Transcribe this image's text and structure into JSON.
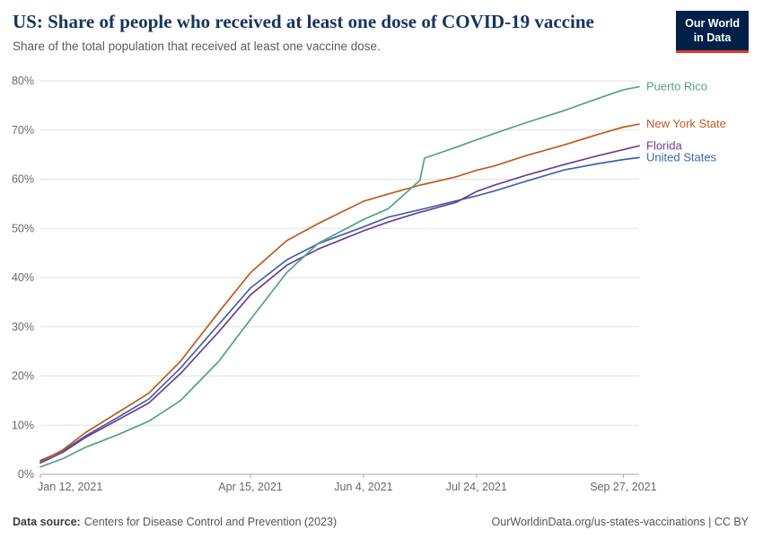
{
  "header": {
    "title": "US: Share of people who received at least one dose of COVID-19 vaccine",
    "subtitle": "Share of the total population that received at least one vaccine dose.",
    "logo": {
      "line1": "Our World",
      "line2": "in Data",
      "bg_color": "#002147",
      "accent_color": "#d93a2b"
    }
  },
  "footer": {
    "source_label": "Data source:",
    "source_value": "Centers for Disease Control and Prevention (2023)",
    "credit": "OurWorldinData.org/us-states-vaccinations | CC BY"
  },
  "chart_data": {
    "type": "line",
    "title": "US: Share of people who received at least one dose of COVID-19 vaccine",
    "subtitle": "Share of the total population that received at least one vaccine dose.",
    "xlabel": "",
    "ylabel": "",
    "grid": true,
    "legend_position": "end-of-line labels, right side",
    "y_min": 0,
    "y_max": 80,
    "y_ticks": [
      0,
      10,
      20,
      30,
      40,
      50,
      60,
      70,
      80
    ],
    "y_tick_suffix": "%",
    "x_unit": "days since Jan 12, 2021",
    "x_min": 0,
    "x_max": 265,
    "x_ticks": [
      {
        "day": 0,
        "label": "Jan 12, 2021"
      },
      {
        "day": 93,
        "label": "Apr 15, 2021"
      },
      {
        "day": 143,
        "label": "Jun 4, 2021"
      },
      {
        "day": 193,
        "label": "Jul 24, 2021"
      },
      {
        "day": 258,
        "label": "Sep 27, 2021"
      }
    ],
    "x_days": [
      0,
      10,
      20,
      34,
      48,
      62,
      79,
      93,
      109,
      123,
      143,
      154,
      168,
      170,
      184,
      193,
      201,
      215,
      232,
      246,
      258,
      265
    ],
    "series": [
      {
        "id": "united-states",
        "name": "United States",
        "color": "#3d64ad",
        "values": [
          2.8,
          4.8,
          7.8,
          11.5,
          15.3,
          21.6,
          30.5,
          37.9,
          43.6,
          46.9,
          50.3,
          52.3,
          53.8,
          54.0,
          55.6,
          56.6,
          57.6,
          59.6,
          61.9,
          63.1,
          64.0,
          64.4
        ]
      },
      {
        "id": "florida",
        "name": "Florida",
        "color": "#6d3e91",
        "values": [
          2.3,
          4.5,
          7.5,
          11.0,
          14.5,
          20.5,
          29.0,
          36.5,
          42.5,
          45.8,
          49.5,
          51.3,
          53.3,
          53.5,
          55.3,
          57.5,
          58.8,
          60.8,
          63.0,
          64.7,
          66.0,
          66.8
        ]
      },
      {
        "id": "new-york-state",
        "name": "New York State",
        "color": "#bf5b1f",
        "values": [
          2.5,
          5.0,
          8.5,
          12.5,
          16.5,
          23.0,
          33.0,
          41.0,
          47.5,
          51.0,
          55.5,
          57.0,
          58.8,
          59.0,
          60.5,
          61.8,
          62.7,
          64.8,
          67.0,
          69.0,
          70.6,
          71.2
        ]
      },
      {
        "id": "puerto-rico",
        "name": "Puerto Rico",
        "color": "#54a187",
        "values": [
          1.5,
          3.2,
          5.5,
          8.0,
          10.8,
          15.0,
          23.0,
          31.5,
          41.0,
          47.0,
          51.8,
          54.0,
          59.8,
          64.3,
          66.5,
          68.0,
          69.3,
          71.5,
          74.0,
          76.3,
          78.2,
          78.8
        ]
      }
    ]
  }
}
